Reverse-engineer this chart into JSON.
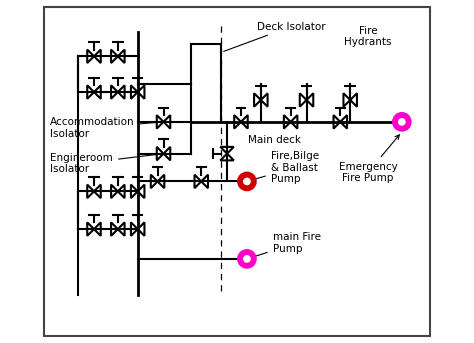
{
  "bg_color": "#ffffff",
  "line_color": "#000000",
  "line_width": 1.5,
  "labels": {
    "deck_isolator": "Deck Isolator",
    "fire_hydrants": "Fire\nHydrants",
    "accommodation": "Accommodation\nIsolator",
    "engineroom": "Engineroom\nIsolator",
    "main_deck": "Main deck",
    "fire_bilge": "Fire,Bilge\n& Ballast\nPump",
    "emergency": "Emergency\nFire Pump",
    "main_fire": "main Fire\nPump"
  },
  "colors": {
    "red_pump": "#cc0000",
    "magenta_pump": "#ff00cc",
    "line": "#000000"
  },
  "valve_s": 0.17,
  "font_size": 7.5
}
